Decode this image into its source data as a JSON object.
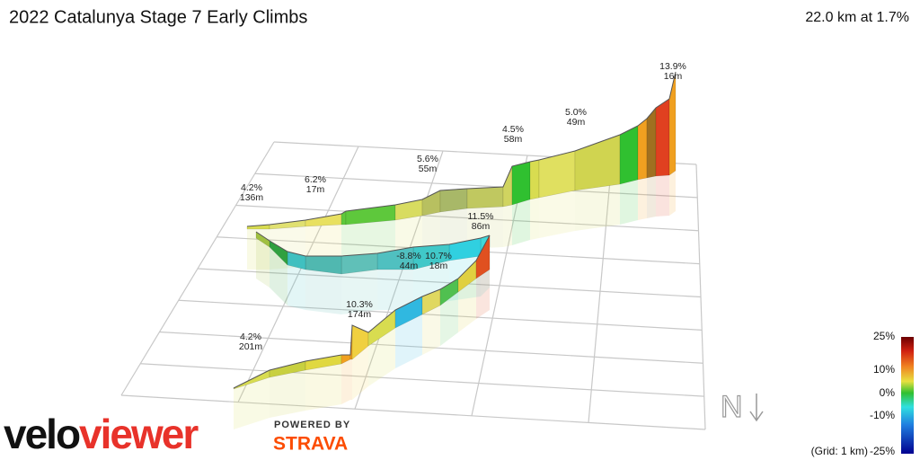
{
  "header": {
    "title": "2022 Catalunya Stage 7 Early Climbs",
    "summary": "22.0 km at 1.7%"
  },
  "annotations": [
    {
      "gradient": "13.9%",
      "length": "16m"
    },
    {
      "gradient": "5.0%",
      "length": "49m"
    },
    {
      "gradient": "4.5%",
      "length": "58m"
    },
    {
      "gradient": "5.6%",
      "length": "55m"
    },
    {
      "gradient": "6.2%",
      "length": "17m"
    },
    {
      "gradient": "4.2%",
      "length": "136m"
    },
    {
      "gradient": "11.5%",
      "length": "86m"
    },
    {
      "gradient": "-8.8%",
      "length": "44m"
    },
    {
      "gradient": "10.7%",
      "length": "18m"
    },
    {
      "gradient": "10.3%",
      "length": "174m"
    },
    {
      "gradient": "4.2%",
      "length": "201m"
    }
  ],
  "legend": {
    "labels": [
      "25%",
      "10%",
      "0%",
      "-10%",
      "-25%"
    ],
    "grid_note": "(Grid: 1 km)"
  },
  "compass": "N",
  "branding": {
    "logo_a": "velo",
    "logo_b": "viewer",
    "powered_by": "POWERED BY",
    "partner": "STRAVA"
  }
}
